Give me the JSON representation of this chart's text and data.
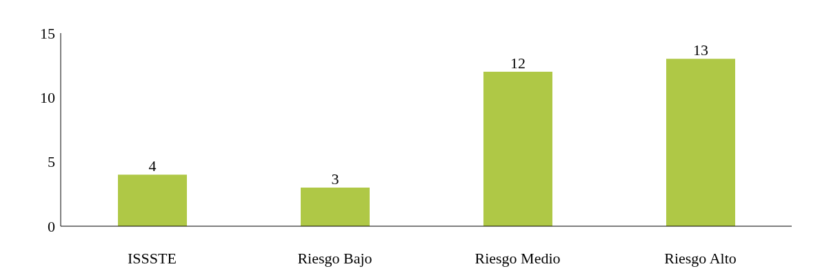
{
  "chart_data": {
    "type": "bar",
    "categories": [
      "ISSSTE",
      "Riesgo Bajo",
      "Riesgo Medio",
      "Riesgo Alto"
    ],
    "values": [
      4,
      3,
      12,
      13
    ],
    "color": "#afc846",
    "ylim": [
      0,
      15
    ],
    "yticks": [
      0,
      5,
      10,
      15
    ],
    "grid": false,
    "data_labels": true,
    "legend": false
  }
}
